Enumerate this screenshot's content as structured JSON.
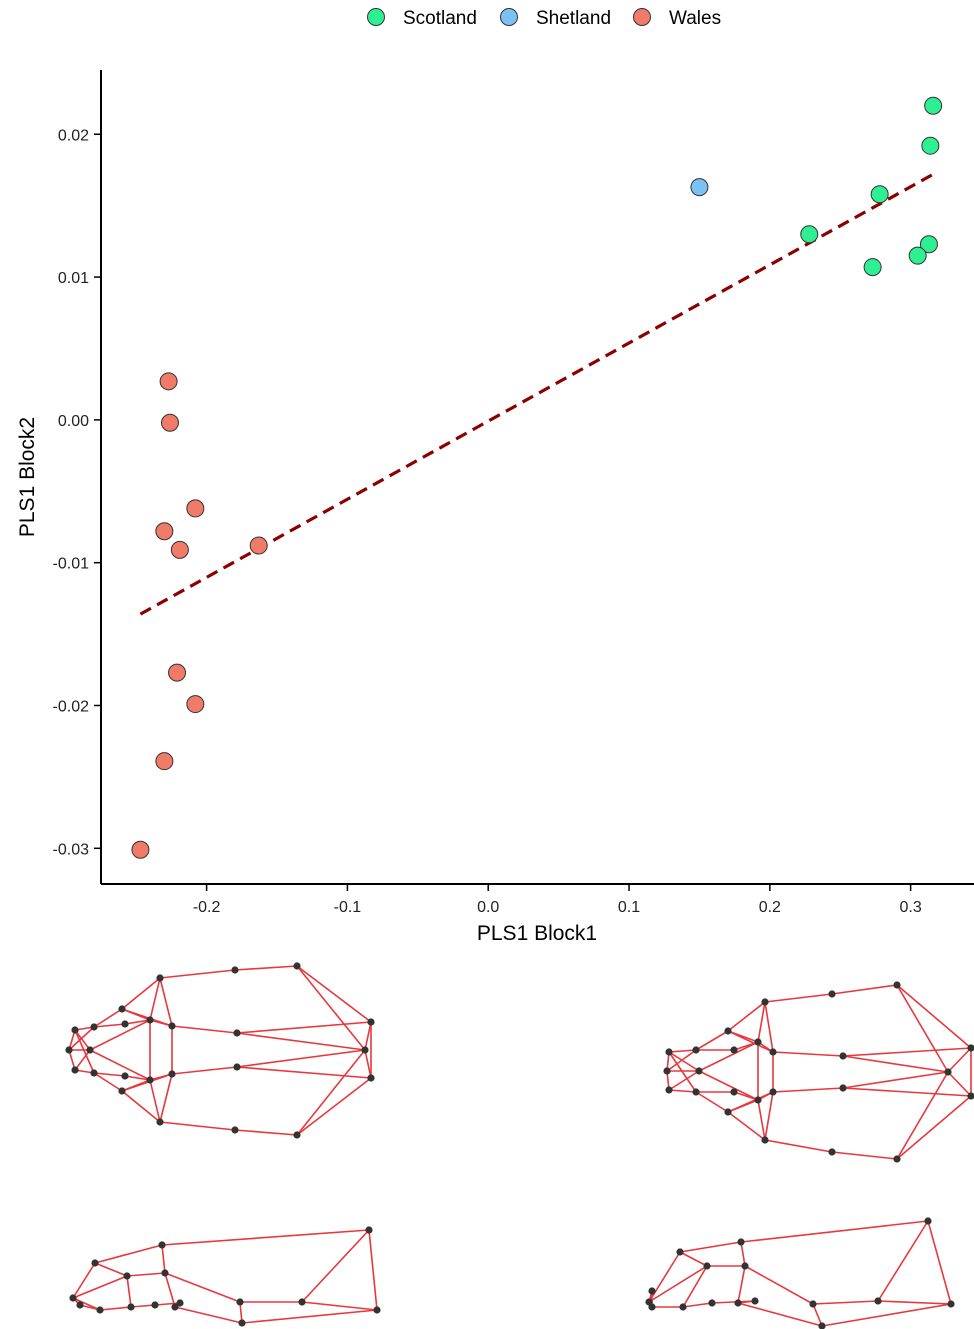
{
  "chart_data": {
    "type": "scatter",
    "xlabel": "PLS1 Block1",
    "ylabel": "PLS1 Block2",
    "xlim": [
      -0.275,
      0.345
    ],
    "ylim": [
      -0.0325,
      0.0245
    ],
    "xticks": [
      -0.2,
      -0.1,
      0.0,
      0.1,
      0.2,
      0.3
    ],
    "xtick_labels": [
      "-0.2",
      "-0.1",
      "0.0",
      "0.1",
      "0.2",
      "0.3"
    ],
    "yticks": [
      -0.03,
      -0.02,
      -0.01,
      0.0,
      0.01,
      0.02
    ],
    "ytick_labels": [
      "-0.03",
      "-0.02",
      "-0.01",
      "0.00",
      "0.01",
      "0.02"
    ],
    "grid": false,
    "legend_position": "top",
    "series": [
      {
        "name": "Scotland",
        "color": "#2FEF93",
        "points": [
          [
            0.316,
            0.022
          ],
          [
            0.314,
            0.0192
          ],
          [
            0.278,
            0.0158
          ],
          [
            0.228,
            0.013
          ],
          [
            0.313,
            0.0123
          ],
          [
            0.305,
            0.0115
          ],
          [
            0.273,
            0.0107
          ]
        ]
      },
      {
        "name": "Shetland",
        "color": "#7CC1F4",
        "points": [
          [
            0.15,
            0.0163
          ]
        ]
      },
      {
        "name": "Wales",
        "color": "#F07B68",
        "points": [
          [
            -0.227,
            0.0027
          ],
          [
            -0.226,
            -0.0002
          ],
          [
            -0.208,
            -0.0062
          ],
          [
            -0.23,
            -0.0078
          ],
          [
            -0.219,
            -0.0091
          ],
          [
            -0.163,
            -0.0088
          ],
          [
            -0.221,
            -0.0177
          ],
          [
            -0.208,
            -0.0199
          ],
          [
            -0.23,
            -0.0239
          ],
          [
            -0.247,
            -0.0301
          ]
        ]
      }
    ],
    "fit_line": {
      "x": [
        -0.247,
        0.316
      ],
      "y": [
        -0.0136,
        0.0172
      ],
      "color": "#8B0000",
      "style": "dashed"
    }
  },
  "wireframes": {
    "color": "#E8383D",
    "node_color": "#333333"
  }
}
